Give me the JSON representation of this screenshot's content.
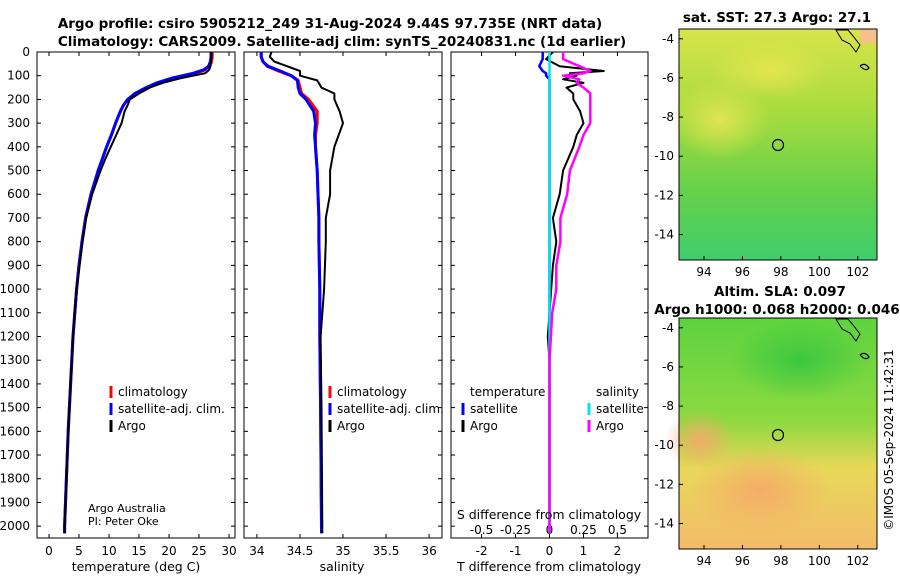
{
  "header": {
    "title_line1": "Argo profile: csiro 5905212_249 31-Aug-2024 9.44S 97.735E (NRT data)",
    "title_line2": "Climatology: CARS2009. Satellite-adj clim: synTS_20240831.nc (1d earlier)"
  },
  "colors": {
    "climatology": "#ff0000",
    "satellite": "#0000ff",
    "argo": "#000000",
    "sat_salinity": "#00e5ee",
    "argo_salinity": "#ff00ff"
  },
  "depth_ticks": [
    "0",
    "100",
    "200",
    "300",
    "400",
    "500",
    "600",
    "700",
    "800",
    "900",
    "1000",
    "1100",
    "1200",
    "1300",
    "1400",
    "1500",
    "1600",
    "1700",
    "1800",
    "1900",
    "2000"
  ],
  "chart_data": [
    {
      "type": "line",
      "name": "temperature",
      "xlabel": "temperature (deg C)",
      "ylabel": "depth",
      "xlim": [
        -2,
        31
      ],
      "ylim": [
        2050,
        0
      ],
      "xticks": [
        "0",
        "5",
        "10",
        "15",
        "20",
        "25",
        "30"
      ],
      "legend": [
        "climatology",
        "satellite-adj. clim.",
        "Argo"
      ],
      "credit1": "Argo Australia",
      "credit2": "PI: Peter Oke",
      "depth": [
        0,
        20,
        40,
        60,
        75,
        90,
        110,
        130,
        150,
        175,
        200,
        225,
        250,
        300,
        350,
        400,
        450,
        500,
        600,
        700,
        800,
        900,
        1000,
        1200,
        1400,
        1600,
        1800,
        2000,
        2030
      ],
      "series": [
        {
          "name": "climatology",
          "values": [
            27.2,
            27.2,
            27.1,
            26.8,
            26,
            24.5,
            21,
            18.5,
            16.5,
            14.5,
            13.2,
            12.4,
            11.9,
            11.1,
            10.4,
            9.6,
            8.9,
            8.2,
            7.0,
            6.1,
            5.5,
            5.0,
            4.6,
            4.0,
            3.6,
            3.2,
            2.9,
            2.6,
            2.6
          ]
        },
        {
          "name": "satellite-adj. clim.",
          "values": [
            27.0,
            27.0,
            26.9,
            26.6,
            25.8,
            24,
            20.5,
            18,
            16.2,
            14.3,
            13.1,
            12.4,
            11.9,
            11.1,
            10.4,
            9.6,
            8.9,
            8.2,
            7.0,
            6.1,
            5.5,
            5.0,
            4.6,
            4.0,
            3.6,
            3.2,
            2.9,
            2.6,
            2.6
          ]
        },
        {
          "name": "Argo",
          "values": [
            27.1,
            27.1,
            27.0,
            26.9,
            26.7,
            26.0,
            22,
            19,
            16.8,
            15,
            13.5,
            13.1,
            12.6,
            12.1,
            11.2,
            10.3,
            9.4,
            8.6,
            7.2,
            6.2,
            5.6,
            5.1,
            4.6,
            4.0,
            3.6,
            3.2,
            2.9,
            2.6,
            2.6
          ]
        }
      ]
    },
    {
      "type": "line",
      "name": "salinity",
      "xlabel": "salinity",
      "xlim": [
        33.85,
        36.15
      ],
      "ylim": [
        2050,
        0
      ],
      "xticks": [
        "34",
        "34.5",
        "35",
        "35.5",
        "36"
      ],
      "legend": [
        "climatology",
        "satellite-adj. clim.",
        "Argo"
      ],
      "depth": [
        0,
        20,
        40,
        60,
        80,
        100,
        120,
        150,
        175,
        200,
        250,
        300,
        350,
        400,
        500,
        600,
        700,
        800,
        1000,
        1200,
        1500,
        2000,
        2030
      ],
      "series": [
        {
          "name": "climatology",
          "values": [
            34.05,
            34.05,
            34.07,
            34.12,
            34.25,
            34.4,
            34.48,
            34.5,
            34.52,
            34.6,
            34.7,
            34.7,
            34.68,
            34.68,
            34.7,
            34.71,
            34.72,
            34.72,
            34.73,
            34.73,
            34.74,
            34.75,
            34.75
          ]
        },
        {
          "name": "satellite-adj. clim.",
          "values": [
            34.05,
            34.05,
            34.07,
            34.13,
            34.27,
            34.4,
            34.47,
            34.48,
            34.5,
            34.57,
            34.66,
            34.68,
            34.67,
            34.68,
            34.7,
            34.71,
            34.72,
            34.72,
            34.73,
            34.73,
            34.74,
            34.75,
            34.75
          ]
        },
        {
          "name": "Argo",
          "values": [
            34.17,
            34.15,
            34.2,
            34.35,
            34.5,
            34.5,
            34.7,
            34.75,
            34.9,
            34.9,
            34.96,
            35.0,
            34.95,
            34.9,
            34.85,
            34.85,
            34.8,
            34.8,
            34.78,
            34.74,
            34.75,
            34.76,
            34.76
          ]
        }
      ]
    },
    {
      "type": "line",
      "name": "difference from climatology",
      "xlabel": "T difference from climatology",
      "xlabel_top": "S difference from climatology",
      "xlim": [
        -2.9,
        2.9
      ],
      "ylim": [
        2050,
        0
      ],
      "xticks": [
        "-2",
        "-1",
        "0",
        "1",
        "2"
      ],
      "xticks_top": [
        "-0.5",
        "-0.25",
        "0",
        "0.25",
        "0.5"
      ],
      "legend_temperature_title": "temperature",
      "legend_salinity_title": "salinity",
      "legend_temperature": [
        "satellite",
        "Argo"
      ],
      "legend_salinity": [
        "satellite",
        "Argo"
      ],
      "depth": [
        0,
        30,
        60,
        80,
        90,
        100,
        115,
        130,
        150,
        175,
        200,
        250,
        300,
        350,
        400,
        500,
        600,
        700,
        800,
        900,
        1000,
        1100,
        1200,
        1300,
        1500,
        1800,
        2000,
        2030
      ],
      "series": [
        {
          "name": "T satellite",
          "values": [
            -0.2,
            -0.2,
            -0.3,
            -0.2,
            -0.1,
            -0.1,
            0,
            0,
            0,
            0,
            0,
            0,
            0,
            0,
            0,
            0,
            0,
            0,
            0,
            0,
            0,
            0,
            0,
            0,
            0,
            0,
            0,
            0
          ]
        },
        {
          "name": "T Argo",
          "values": [
            0.1,
            -0.1,
            0.3,
            1.6,
            0.6,
            0.8,
            0.4,
            1.0,
            0.5,
            0.7,
            0.7,
            0.9,
            1.0,
            0.8,
            0.7,
            0.4,
            0.3,
            0.1,
            0.2,
            0.1,
            0.05,
            0,
            -0.05,
            0,
            0,
            0,
            0,
            0
          ]
        },
        {
          "name": "S satellite",
          "values": [
            0,
            0,
            0,
            0,
            0,
            0,
            0,
            0,
            0,
            0,
            0,
            0,
            0,
            0,
            0,
            0,
            0,
            0,
            0,
            0,
            0,
            0,
            0,
            0,
            0,
            0,
            0,
            0
          ]
        },
        {
          "name": "S Argo",
          "values": [
            0.1,
            0.1,
            0.22,
            0.3,
            0.25,
            0.1,
            0.22,
            0.2,
            0.25,
            0.3,
            0.3,
            0.3,
            0.3,
            0.25,
            0.22,
            0.15,
            0.13,
            0.08,
            0.08,
            0.05,
            0.05,
            0.02,
            0.01,
            0,
            0,
            0,
            0,
            0
          ]
        }
      ]
    },
    {
      "type": "heatmap",
      "name": "SST map",
      "title": "sat. SST: 27.3 Argo: 27.1",
      "xticks": [
        "94",
        "96",
        "98",
        "100",
        "102"
      ],
      "yticks": [
        "-4",
        "-6",
        "-8",
        "-10",
        "-12",
        "-14"
      ],
      "xlim": [
        92.7,
        103.0
      ],
      "ylim": [
        -15.3,
        -3.5
      ],
      "argo_position": [
        97.735,
        -9.44
      ]
    },
    {
      "type": "heatmap",
      "name": "SLA map",
      "title1": "Altim. SLA: 0.097",
      "title2": "Argo h1000: 0.068 h2000: 0.046",
      "xticks": [
        "94",
        "96",
        "98",
        "100",
        "102"
      ],
      "yticks": [
        "-4",
        "-6",
        "-8",
        "-10",
        "-12",
        "-14"
      ],
      "xlim": [
        92.7,
        103.0
      ],
      "ylim": [
        -15.3,
        -3.5
      ],
      "argo_position": [
        97.735,
        -9.44
      ]
    }
  ],
  "watermark": "©IMOS 05-Sep-2024 11:42:31"
}
